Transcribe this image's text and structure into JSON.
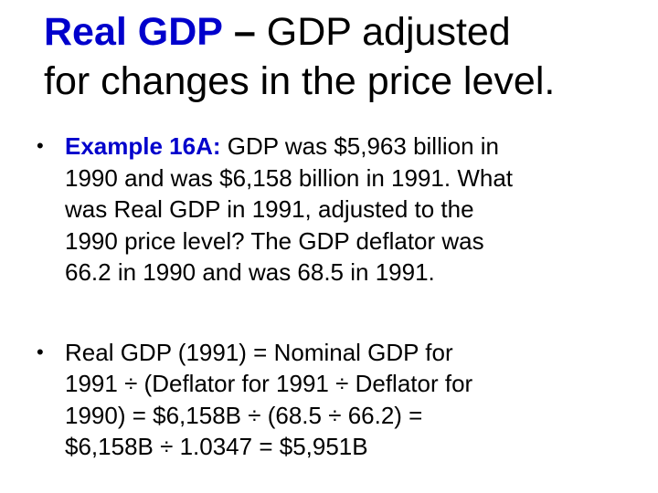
{
  "title": {
    "term": "Real GDP",
    "dash": "–",
    "line1_rest": "GDP adjusted",
    "line2": "for changes in the price level."
  },
  "bullets": [
    {
      "marker": "•",
      "lead": "Example 16A:",
      "lines": [
        "GDP was $5,963 billion in",
        "1990 and was $6,158 billion in 1991. What",
        "was Real GDP in 1991, adjusted to the",
        "1990 price level? The GDP deflator was",
        "66.2 in 1990 and was 68.5 in 1991."
      ]
    },
    {
      "marker": "•",
      "lines": [
        "Real GDP (1991)  =  Nominal GDP for",
        "1991  ÷  (Deflator for 1991  ÷  Deflator for",
        "1990)  =  $6,158B  ÷  (68.5  ÷  66.2)  =",
        "$6,158B  ÷  1.0347  =  $5,951B"
      ]
    }
  ]
}
